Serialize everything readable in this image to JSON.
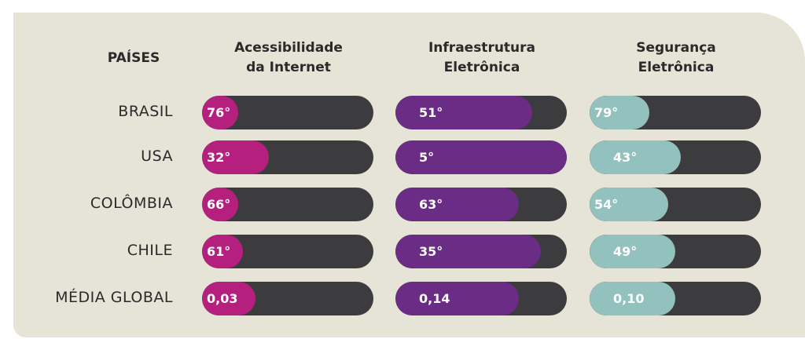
{
  "header": {
    "countries_label": "PAÍSES",
    "columns": [
      {
        "line1": "Acessibilidade",
        "line2": "da Internet"
      },
      {
        "line1": "Infraestrutura",
        "line2": "Eletrônica"
      },
      {
        "line1": "Segurança",
        "line2": "Eletrônica"
      }
    ]
  },
  "colors": {
    "background": "#e6e3d7",
    "track": "#3c3c3e",
    "accessibility": "#b5207f",
    "infrastructure": "#6a2c85",
    "security": "#93c1bd"
  },
  "chart_data": {
    "type": "table",
    "columns": [
      "Acessibilidade da Internet",
      "Infraestrutura Eletrônica",
      "Segurança Eletrônica"
    ],
    "rows": [
      {
        "country": "BRASIL",
        "labels": [
          "76°",
          "51°",
          "79°"
        ],
        "fill": [
          0.21,
          0.8,
          0.35
        ]
      },
      {
        "country": "USA",
        "labels": [
          "32°",
          "5°",
          "43°"
        ],
        "fill": [
          0.39,
          1.0,
          0.53
        ]
      },
      {
        "country": "COLÔMBIA",
        "labels": [
          "66°",
          "63°",
          "54°"
        ],
        "fill": [
          0.21,
          0.72,
          0.46
        ]
      },
      {
        "country": "CHILE",
        "labels": [
          "61°",
          "35°",
          "49°"
        ],
        "fill": [
          0.24,
          0.85,
          0.5
        ]
      },
      {
        "country": "MÉDIA GLOBAL",
        "labels": [
          "0,03",
          "0,14",
          "0,10"
        ],
        "fill": [
          0.31,
          0.72,
          0.5
        ]
      }
    ]
  }
}
